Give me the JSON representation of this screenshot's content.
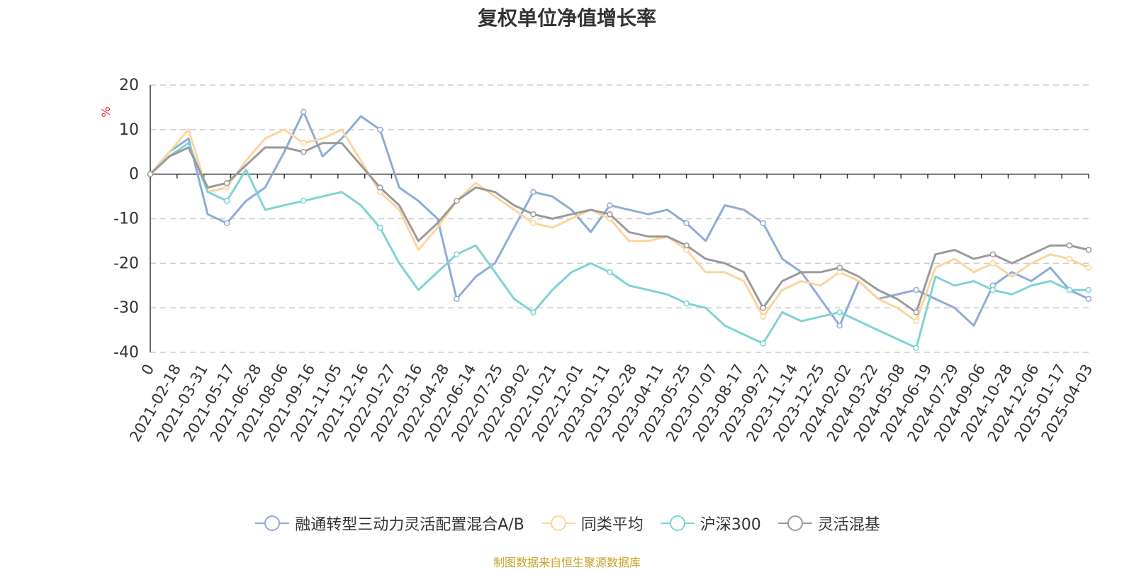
{
  "chart_data": {
    "type": "line",
    "title": "复权单位净值增长率",
    "ylabel": "%",
    "ylim": [
      -40,
      20
    ],
    "yticks": [
      20,
      10,
      0,
      -10,
      -20,
      -30,
      -40
    ],
    "ytick_labels": [
      "20",
      "10",
      "0",
      "-10",
      "-20",
      "-30",
      "-40"
    ],
    "xtick_labels": [
      "0",
      "2021-02-18",
      "2021-03-31",
      "2021-05-17",
      "2021-06-28",
      "2021-08-06",
      "2021-09-16",
      "2021-11-05",
      "2021-12-16",
      "2022-01-27",
      "2022-03-16",
      "2022-04-28",
      "2022-06-14",
      "2022-07-25",
      "2022-09-02",
      "2022-10-21",
      "2022-12-01",
      "2023-01-11",
      "2023-02-28",
      "2023-04-11",
      "2023-05-25",
      "2023-07-07",
      "2023-08-17",
      "2023-09-27",
      "2023-11-14",
      "2023-12-25",
      "2024-02-02",
      "2024-03-22",
      "2024-05-08",
      "2024-06-19",
      "2024-07-29",
      "2024-09-06",
      "2024-10-28",
      "2024-12-06",
      "2025-01-17",
      "2025-04-03"
    ],
    "grid": true,
    "legend_position": "bottom",
    "series": [
      {
        "name": "融通转型三动力灵活配置混合A/B",
        "color": "#8eabd9",
        "values": [
          0,
          5,
          8,
          -9,
          -11,
          -6,
          -3,
          5,
          14,
          4,
          8,
          13,
          10,
          -3,
          -6,
          -10,
          -28,
          -23,
          -20,
          -12,
          -4,
          -5,
          -8,
          -13,
          -7,
          -8,
          -9,
          -8,
          -11,
          -15,
          -7,
          -8,
          -11,
          -19,
          -22,
          -28,
          -34,
          -24,
          -28,
          -27,
          -26,
          -28,
          -30,
          -34,
          -25,
          -22,
          -24,
          -21,
          -26,
          -28
        ]
      },
      {
        "name": "同类平均",
        "color": "#fdd49e",
        "values": [
          0,
          5,
          10,
          -4,
          -3,
          3,
          8,
          10,
          7,
          8,
          10,
          3,
          -4,
          -8,
          -17,
          -12,
          -6,
          -2,
          -5,
          -8,
          -11,
          -12,
          -10,
          -8,
          -10,
          -15,
          -15,
          -14,
          -17,
          -22,
          -22,
          -24,
          -32,
          -26,
          -24,
          -25,
          -22,
          -24,
          -28,
          -30,
          -33,
          -21,
          -19,
          -22,
          -20,
          -23,
          -20,
          -18,
          -19,
          -21
        ]
      },
      {
        "name": "沪深300",
        "color": "#7ed3d4",
        "values": [
          0,
          4,
          7,
          -4,
          -6,
          1,
          -8,
          -7,
          -6,
          -5,
          -4,
          -7,
          -12,
          -20,
          -26,
          -22,
          -18,
          -16,
          -22,
          -28,
          -31,
          -26,
          -22,
          -20,
          -22,
          -25,
          -26,
          -27,
          -29,
          -30,
          -34,
          -36,
          -38,
          -31,
          -33,
          -32,
          -31,
          -33,
          -35,
          -37,
          -39,
          -23,
          -25,
          -24,
          -26,
          -27,
          -25,
          -24,
          -26,
          -26
        ]
      },
      {
        "name": "灵活混基",
        "color": "#9a9a9a",
        "values": [
          0,
          4,
          6,
          -3,
          -2,
          2,
          6,
          6,
          5,
          7,
          7,
          2,
          -3,
          -7,
          -15,
          -11,
          -6,
          -3,
          -4,
          -7,
          -9,
          -10,
          -9,
          -8,
          -9,
          -13,
          -14,
          -14,
          -16,
          -19,
          -20,
          -22,
          -30,
          -24,
          -22,
          -22,
          -21,
          -23,
          -26,
          -28,
          -31,
          -18,
          -17,
          -19,
          -18,
          -20,
          -18,
          -16,
          -16,
          -17
        ]
      }
    ]
  },
  "source_note": "制图数据来自恒生聚源数据库"
}
